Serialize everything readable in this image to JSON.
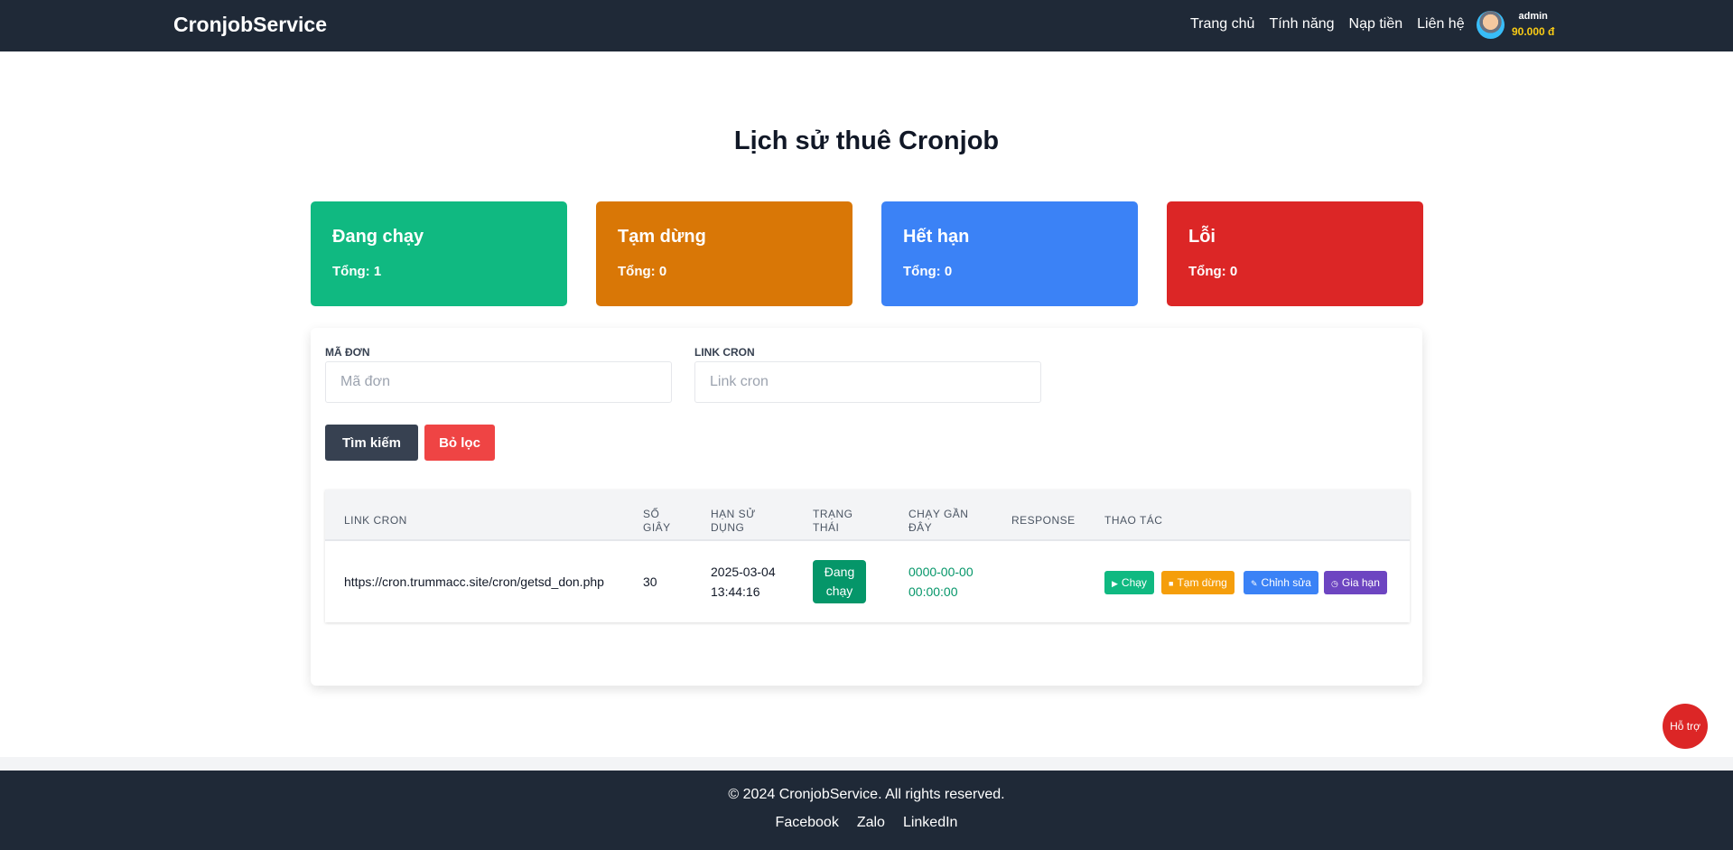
{
  "nav": {
    "brand": "CronjobService",
    "items": [
      "Trang chủ",
      "Tính năng",
      "Nạp tiền",
      "Liên hệ"
    ],
    "username": "admin",
    "balance": "90.000 đ"
  },
  "page_title": "Lịch sử thuê Cronjob",
  "cards": [
    {
      "title": "Đang chạy",
      "count": "Tổng: 1",
      "color": "#10b981"
    },
    {
      "title": "Tạm dừng",
      "count": "Tổng: 0",
      "color": "#d97706"
    },
    {
      "title": "Hết hạn",
      "count": "Tổng: 0",
      "color": "#3b82f6"
    },
    {
      "title": "Lỗi",
      "count": "Tổng: 0",
      "color": "#dc2626"
    }
  ],
  "filters": {
    "order_label": "MÃ ĐƠN",
    "order_placeholder": "Mã đơn",
    "link_label": "LINK CRON",
    "link_placeholder": "Link cron",
    "search": "Tìm kiếm",
    "clear": "Bỏ lọc"
  },
  "table": {
    "headers": [
      "LINK CRON",
      "SỐ GIÂY",
      "HẠN SỬ DỤNG",
      "TRẠNG THÁI",
      "CHẠY GẦN ĐÂY",
      "RESPONSE",
      "THAO TÁC"
    ],
    "rows": [
      {
        "link": "https://cron.trummacc.site/cron/getsd_don.php",
        "seconds": "30",
        "expiry": "2025-03-04 13:44:16",
        "status": "Đang chạy",
        "last_run": "0000-00-00 00:00:00",
        "response": "",
        "actions": [
          "Chạy",
          "Tạm dừng",
          "Chỉnh sửa",
          "Gia hạn"
        ]
      }
    ]
  },
  "footer": {
    "copyright": "© 2024 CronjobService. All rights reserved.",
    "links": [
      "Facebook",
      "Zalo",
      "LinkedIn"
    ]
  },
  "support": "Hỗ trợ"
}
